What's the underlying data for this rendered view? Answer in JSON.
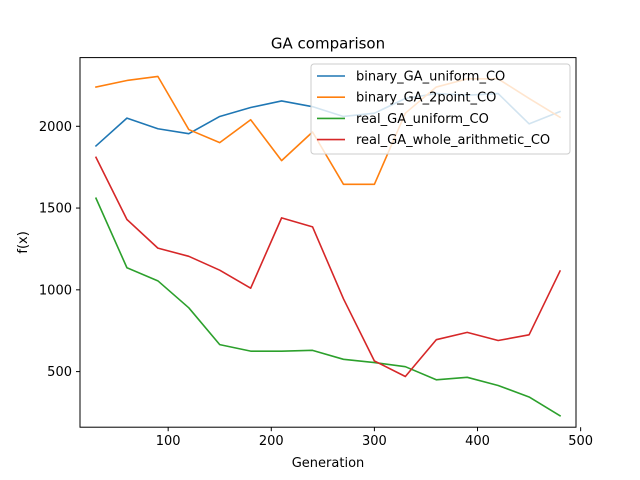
{
  "chart_data": {
    "type": "line",
    "title": "GA comparison",
    "xlabel": "Generation",
    "ylabel": "f(x)",
    "xlim": [
      14.5,
      495.5
    ],
    "ylim": [
      160,
      2420
    ],
    "xticks": [
      100,
      200,
      300,
      400,
      500
    ],
    "yticks": [
      500,
      1000,
      1500,
      2000
    ],
    "grid": false,
    "legend_position": "top-right",
    "x": [
      30,
      60,
      90,
      120,
      150,
      180,
      210,
      240,
      270,
      300,
      330,
      360,
      390,
      420,
      450,
      480
    ],
    "series": [
      {
        "name": "binary_GA_uniform_CO",
        "color": "#1f77b4",
        "values": [
          1880,
          2050,
          1985,
          1955,
          2060,
          2115,
          2155,
          2120,
          2060,
          2080,
          2170,
          2200,
          2190,
          2200,
          2015,
          2090
        ]
      },
      {
        "name": "binary_GA_2point_CO",
        "color": "#ff7f0e",
        "values": [
          2240,
          2280,
          2305,
          1980,
          1900,
          2040,
          1790,
          1965,
          1645,
          1645,
          2080,
          2240,
          2290,
          2290,
          2170,
          2055
        ]
      },
      {
        "name": "real_GA_uniform_CO",
        "color": "#2ca02c",
        "values": [
          1560,
          1135,
          1055,
          890,
          665,
          625,
          625,
          630,
          575,
          555,
          530,
          450,
          465,
          415,
          345,
          230
        ]
      },
      {
        "name": "real_GA_whole_arithmetic_CO",
        "color": "#d62728",
        "values": [
          1810,
          1430,
          1255,
          1205,
          1120,
          1010,
          1440,
          1385,
          945,
          565,
          470,
          695,
          740,
          690,
          725,
          1115
        ]
      }
    ]
  }
}
